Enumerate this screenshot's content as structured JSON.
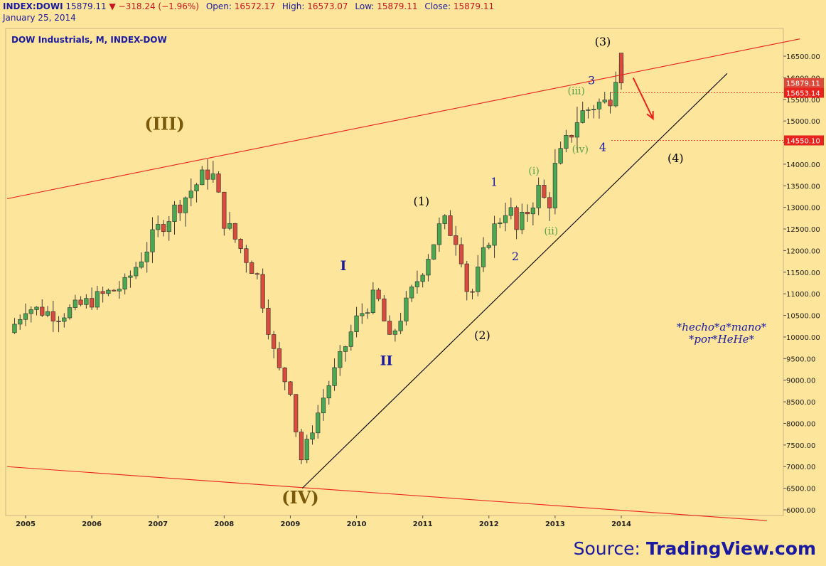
{
  "header": {
    "symbol": "INDEX:DOWI",
    "price": "15879.11",
    "change": "−318.24 (−1.96%)",
    "open_label": "Open:",
    "open": "16572.17",
    "high_label": "High:",
    "high": "16573.07",
    "low_label": "Low:",
    "low": "15879.11",
    "close_label": "Close:",
    "close": "15879.11",
    "date": "January 25, 2014"
  },
  "source": {
    "prefix": "Source: ",
    "name": "TradingView.com"
  },
  "colors": {
    "background": "#fde59b",
    "up": "#4aa853",
    "down": "#d94b3c",
    "trend_red": "#e8221c",
    "trend_black": "#000000",
    "wave_primary": "#7a5a0a",
    "wave_blue": "#1a1aa0",
    "wave_green": "#58a24a"
  },
  "chart_data": {
    "type": "candlestick",
    "title": "DOW Industrials, M, INDEX-DOW",
    "ylim": [
      6000,
      17300
    ],
    "x_tick_labels": [
      "2005",
      "2006",
      "2007",
      "2008",
      "2009",
      "2010",
      "2011",
      "2012",
      "2013",
      "2014"
    ],
    "y_tick_labels": [
      "6000.00",
      "6500.00",
      "7000.00",
      "7500.00",
      "8000.00",
      "8500.00",
      "9000.00",
      "9500.00",
      "10000.00",
      "10500.00",
      "11000.00",
      "11500.00",
      "12000.00",
      "12500.00",
      "13000.00",
      "13500.00",
      "14000.00",
      "14500.00",
      "15000.00",
      "15500.00",
      "16000.00",
      "16500.00"
    ],
    "price_labels": [
      {
        "value": 15879.11,
        "text": "15879.11",
        "color": "#d94b3c"
      },
      {
        "value": 15653.14,
        "text": "15653.14",
        "color": "#e8221c"
      },
      {
        "value": 14550.1,
        "text": "14550.10",
        "color": "#e8221c"
      }
    ],
    "anchor_points": [
      {
        "t": 2004.75,
        "v": 10100
      },
      {
        "t": 2005.0,
        "v": 10700
      },
      {
        "t": 2005.5,
        "v": 10500
      },
      {
        "t": 2006.0,
        "v": 10850
      },
      {
        "t": 2006.5,
        "v": 11200
      },
      {
        "t": 2007.0,
        "v": 12500
      },
      {
        "t": 2007.5,
        "v": 13400
      },
      {
        "t": 2007.8,
        "v": 13900
      },
      {
        "t": 2008.0,
        "v": 12700
      },
      {
        "t": 2008.5,
        "v": 11400
      },
      {
        "t": 2008.8,
        "v": 9300
      },
      {
        "t": 2009.0,
        "v": 8800
      },
      {
        "t": 2009.15,
        "v": 7100
      },
      {
        "t": 2009.5,
        "v": 8600
      },
      {
        "t": 2010.0,
        "v": 10400
      },
      {
        "t": 2010.3,
        "v": 11000
      },
      {
        "t": 2010.5,
        "v": 9900
      },
      {
        "t": 2011.0,
        "v": 11600
      },
      {
        "t": 2011.3,
        "v": 12700
      },
      {
        "t": 2011.55,
        "v": 12200
      },
      {
        "t": 2011.7,
        "v": 10800
      },
      {
        "t": 2012.0,
        "v": 12300
      },
      {
        "t": 2012.3,
        "v": 13100
      },
      {
        "t": 2012.4,
        "v": 12400
      },
      {
        "t": 2012.75,
        "v": 13400
      },
      {
        "t": 2012.9,
        "v": 13000
      },
      {
        "t": 2013.0,
        "v": 13900
      },
      {
        "t": 2013.35,
        "v": 15100
      },
      {
        "t": 2013.6,
        "v": 15400
      },
      {
        "t": 2013.8,
        "v": 15400
      },
      {
        "t": 2013.95,
        "v": 16400
      },
      {
        "t": 2014.0,
        "v": 16550
      }
    ],
    "annotations": [
      {
        "text": "(III)",
        "t": 2007.1,
        "v": 14800,
        "style": "primary"
      },
      {
        "text": "(IV)",
        "t": 2009.15,
        "v": 6150,
        "style": "primary"
      },
      {
        "text": "I",
        "t": 2009.8,
        "v": 11550,
        "style": "blue-roman"
      },
      {
        "text": "II",
        "t": 2010.45,
        "v": 9350,
        "style": "blue-roman"
      },
      {
        "text": "(1)",
        "t": 2010.98,
        "v": 13050,
        "style": "black"
      },
      {
        "text": "(2)",
        "t": 2011.9,
        "v": 9950,
        "style": "black"
      },
      {
        "text": "(3)",
        "t": 2013.72,
        "v": 16750,
        "style": "black"
      },
      {
        "text": "(4)",
        "t": 2014.82,
        "v": 14050,
        "style": "black"
      },
      {
        "text": "1",
        "t": 2012.08,
        "v": 13500,
        "style": "blue"
      },
      {
        "text": "2",
        "t": 2012.4,
        "v": 11780,
        "style": "blue"
      },
      {
        "text": "3",
        "t": 2013.55,
        "v": 15850,
        "style": "blue"
      },
      {
        "text": "4",
        "t": 2013.72,
        "v": 14300,
        "style": "blue"
      },
      {
        "text": "(i)",
        "t": 2012.68,
        "v": 13770,
        "style": "green"
      },
      {
        "text": "(ii)",
        "t": 2012.94,
        "v": 12380,
        "style": "green"
      },
      {
        "text": "(iii)",
        "t": 2013.32,
        "v": 15620,
        "style": "green"
      },
      {
        "text": "(iv)",
        "t": 2013.38,
        "v": 14270,
        "style": "green"
      }
    ],
    "note_lines": [
      "*hecho*a*mano*",
      "*por*HeHe*"
    ],
    "trend_lines": [
      {
        "from": {
          "t": 2004.72,
          "v": 13200
        },
        "to": {
          "t": 2016.7,
          "v": 16900
        },
        "color": "#e8221c"
      },
      {
        "from": {
          "t": 2004.72,
          "v": 7000
        },
        "to": {
          "t": 2016.2,
          "v": 5750
        },
        "color": "#e8221c"
      },
      {
        "from": {
          "t": 2009.18,
          "v": 6500
        },
        "to": {
          "t": 2015.6,
          "v": 16100
        },
        "color": "#000000"
      }
    ],
    "arrow": {
      "from": {
        "t": 2014.18,
        "v": 16000
      },
      "to": {
        "t": 2014.48,
        "v": 15050
      },
      "color": "#e8221c"
    }
  }
}
